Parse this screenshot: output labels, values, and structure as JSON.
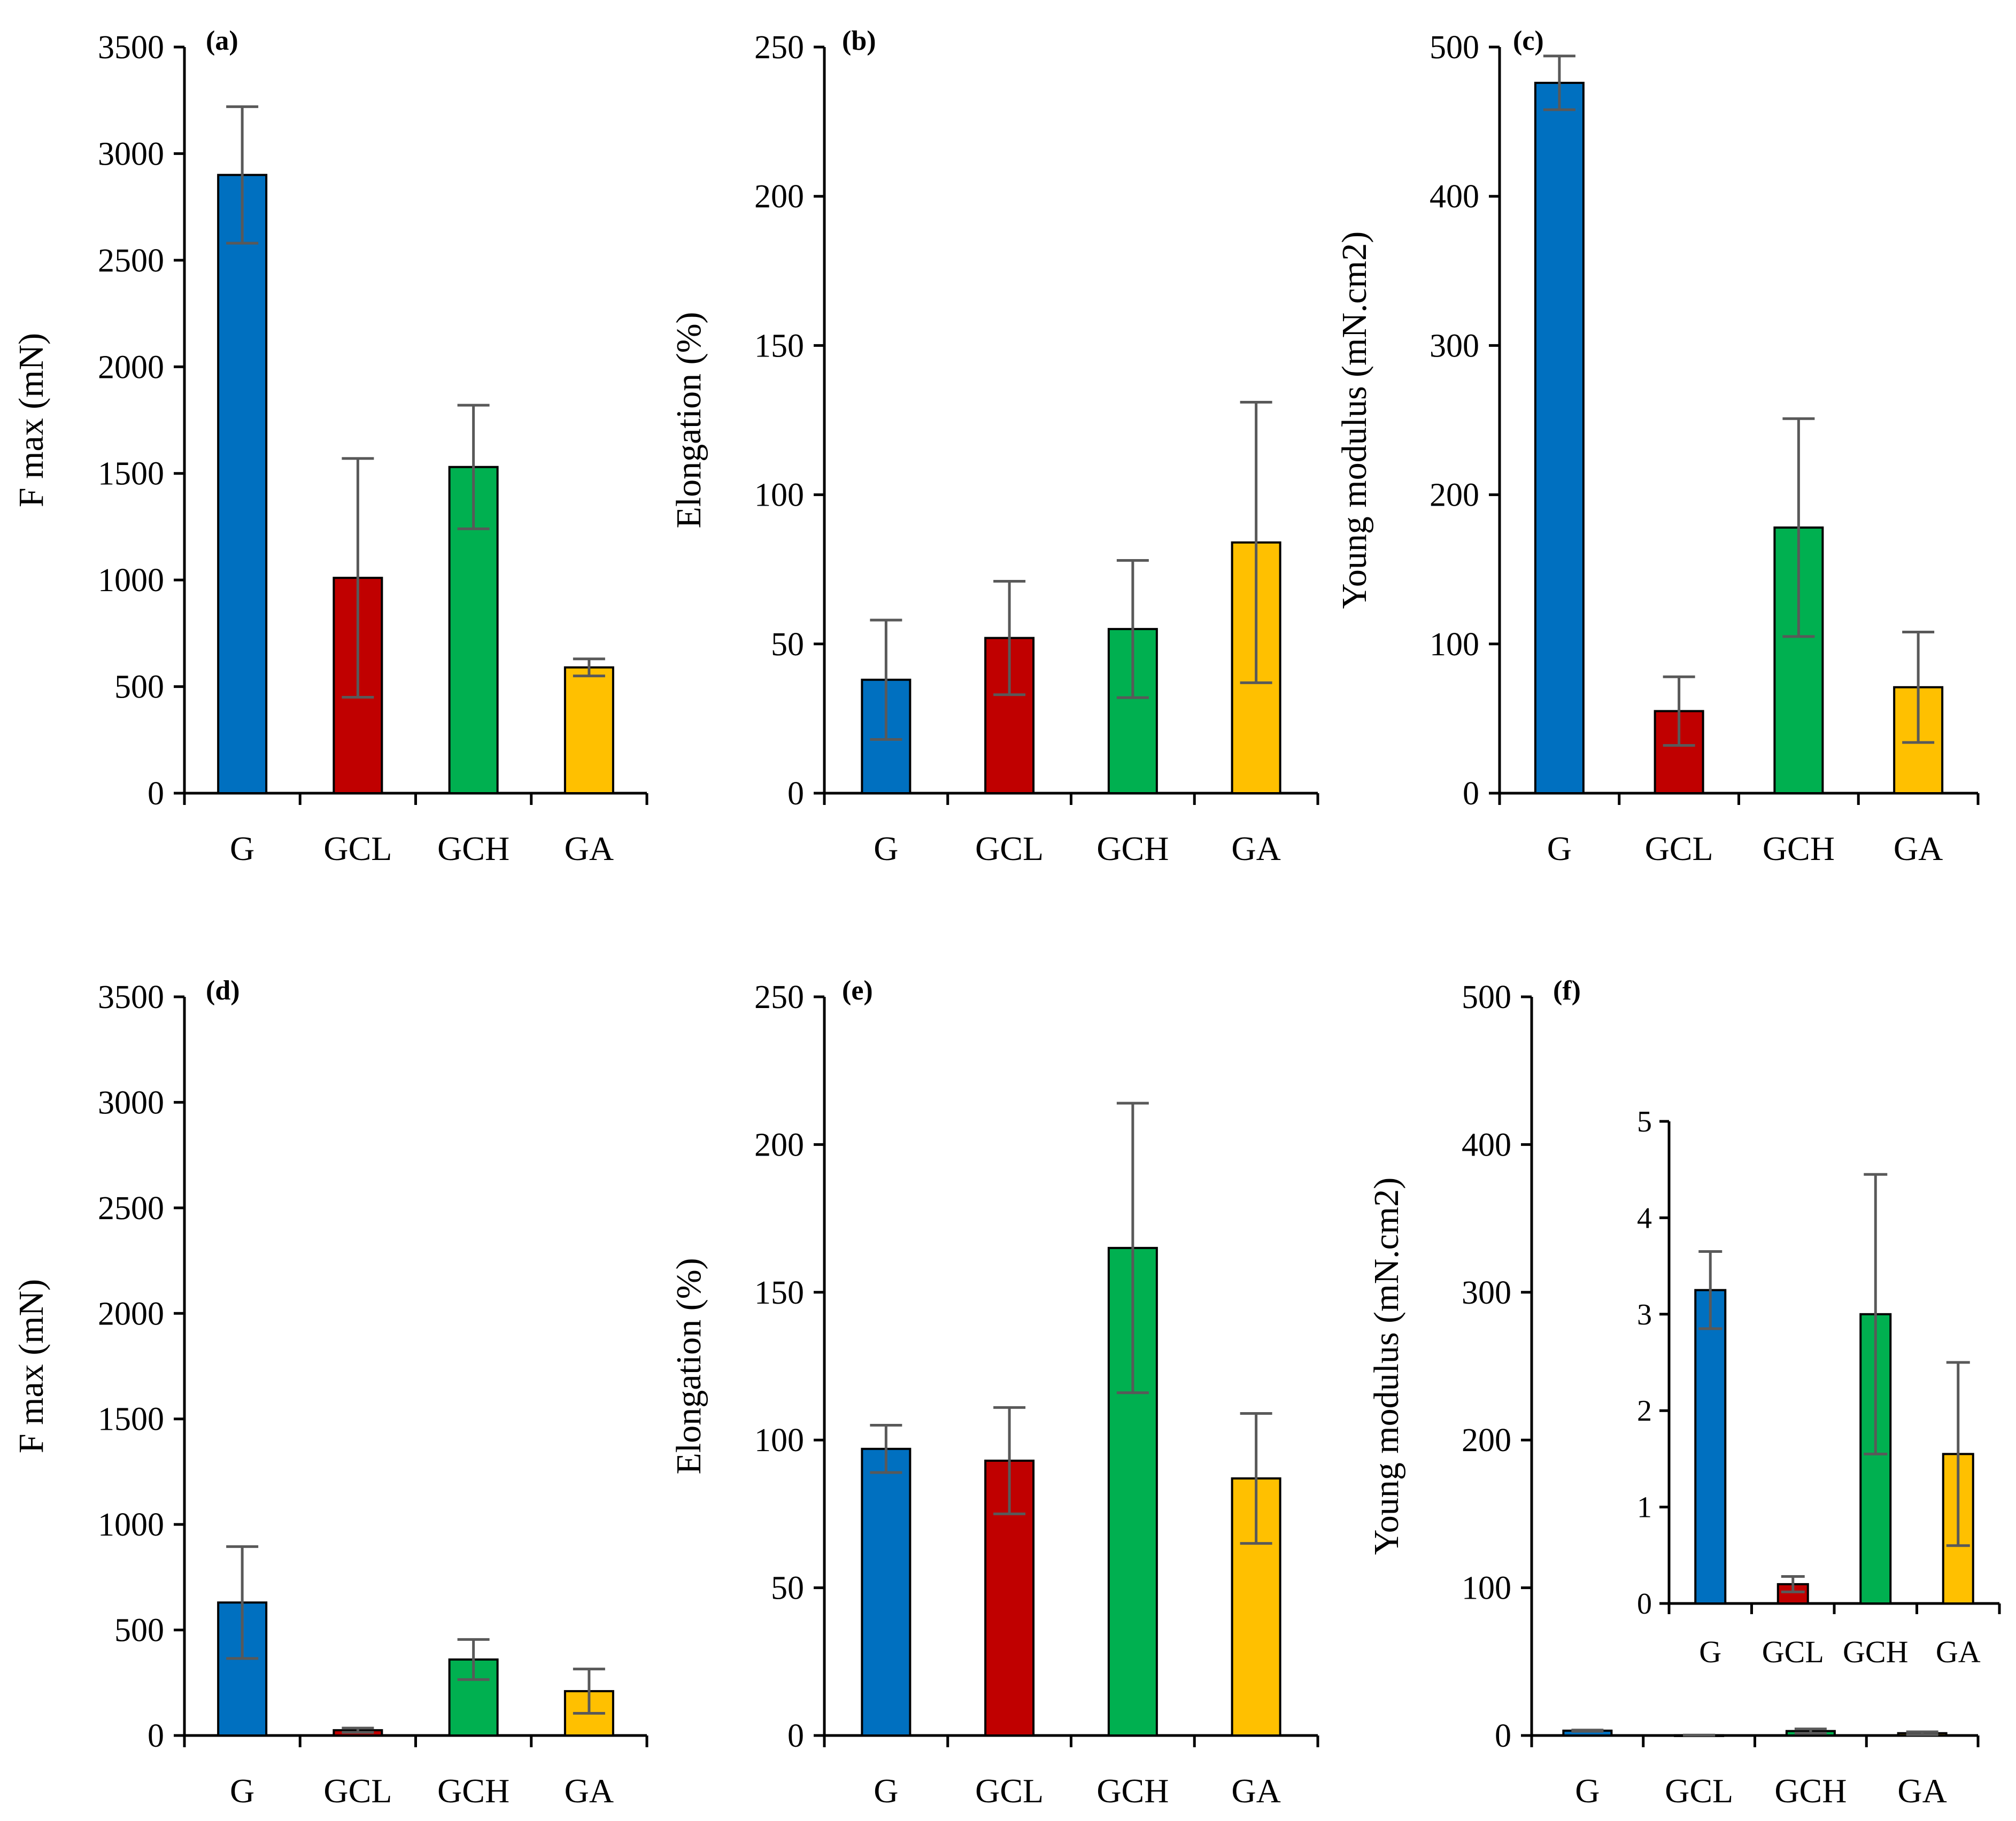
{
  "colors": {
    "G": "#0070c0",
    "GCL": "#c00000",
    "GCH": "#00b050",
    "GA": "#ffc000",
    "error_bar": "#595959",
    "axis": "#000000"
  },
  "chart_data": [
    {
      "panel": "(a)",
      "type": "bar",
      "categories": [
        "G",
        "GCL",
        "GCH",
        "GA"
      ],
      "values": [
        2900,
        1010,
        1530,
        590
      ],
      "errors": [
        320,
        560,
        290,
        40
      ],
      "ylabel": "F max (mN)",
      "ylim": [
        0,
        3500
      ],
      "yticks": [
        "0",
        "500",
        "1000",
        "1500",
        "2000",
        "2500",
        "3000",
        "3500"
      ]
    },
    {
      "panel": "(b)",
      "type": "bar",
      "categories": [
        "G",
        "GCL",
        "GCH",
        "GA"
      ],
      "values": [
        38,
        52,
        55,
        84
      ],
      "errors": [
        20,
        19,
        23,
        47
      ],
      "ylabel": "Elongation (%)",
      "ylim": [
        0,
        250
      ],
      "yticks": [
        "0",
        "50",
        "100",
        "150",
        "200",
        "250"
      ]
    },
    {
      "panel": "(c)",
      "type": "bar",
      "categories": [
        "G",
        "GCL",
        "GCH",
        "GA"
      ],
      "values": [
        476,
        55,
        178,
        71
      ],
      "errors": [
        18,
        23,
        73,
        37
      ],
      "ylabel": "Young modulus (mN.cm2)",
      "ylim": [
        0,
        500
      ],
      "yticks": [
        "0",
        "100",
        "200",
        "300",
        "400",
        "500"
      ]
    },
    {
      "panel": "(d)",
      "type": "bar",
      "categories": [
        "G",
        "GCL",
        "GCH",
        "GA"
      ],
      "values": [
        630,
        25,
        360,
        210
      ],
      "errors": [
        265,
        10,
        95,
        105
      ],
      "ylabel": "F max (mN)",
      "ylim": [
        0,
        3500
      ],
      "yticks": [
        "0",
        "500",
        "1000",
        "1500",
        "2000",
        "2500",
        "3000",
        "3500"
      ]
    },
    {
      "panel": "(e)",
      "type": "bar",
      "categories": [
        "G",
        "GCL",
        "GCH",
        "GA"
      ],
      "values": [
        97,
        93,
        165,
        87
      ],
      "errors": [
        8,
        18,
        49,
        22
      ],
      "ylabel": "Elongation (%)",
      "ylim": [
        0,
        250
      ],
      "yticks": [
        "0",
        "50",
        "100",
        "150",
        "200",
        "250"
      ]
    },
    {
      "panel": "(f)",
      "type": "bar",
      "categories": [
        "G",
        "GCL",
        "GCH",
        "GA"
      ],
      "values": [
        3.25,
        0.2,
        3.0,
        1.55
      ],
      "errors": [
        0.4,
        0.08,
        1.45,
        0.95
      ],
      "ylabel": "Young modulus (mN.cm2)",
      "ylim": [
        0,
        500
      ],
      "yticks": [
        "0",
        "100",
        "200",
        "300",
        "400",
        "500"
      ],
      "inset": {
        "ylim": [
          0,
          5
        ],
        "yticks": [
          "0",
          "1",
          "2",
          "3",
          "4",
          "5"
        ]
      }
    }
  ]
}
